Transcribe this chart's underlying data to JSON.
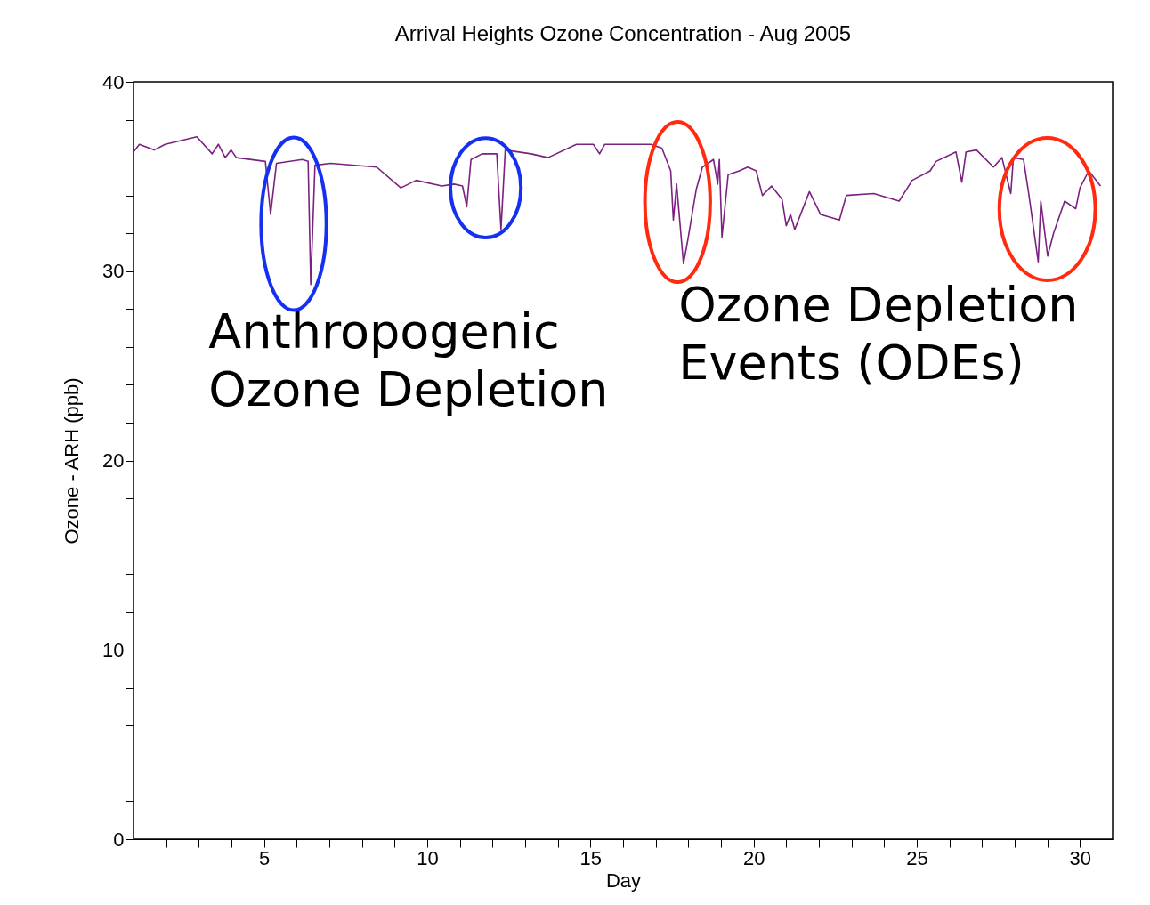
{
  "chart_data": {
    "type": "line",
    "title": "Arrival Heights Ozone Concentration - Aug 2005",
    "xlabel": "Day",
    "ylabel": "Ozone - ARH (ppb)",
    "annotations": [
      "Anthropogenic Ozone Depletion",
      "Ozone Depletion Events (ODEs)"
    ],
    "x": [
      1.0,
      1.18,
      1.63,
      1.97,
      2.94,
      3.41,
      3.6,
      3.81,
      3.99,
      4.15,
      5.04,
      5.2,
      5.3,
      5.38,
      6.17,
      6.35,
      6.43,
      6.56,
      7.04,
      8.45,
      9.19,
      9.66,
      10.45,
      10.82,
      11.08,
      11.21,
      11.34,
      11.68,
      12.13,
      12.26,
      12.39,
      13.18,
      13.7,
      14.57,
      15.09,
      15.28,
      15.44,
      16.85,
      17.19,
      17.46,
      17.54,
      17.64,
      17.85,
      17.98,
      18.24,
      18.43,
      18.77,
      18.9,
      18.95,
      19.03,
      19.22,
      19.56,
      19.82,
      20.08,
      20.27,
      20.55,
      20.87,
      21.0,
      21.13,
      21.26,
      21.71,
      22.05,
      22.63,
      22.84,
      23.68,
      24.46,
      24.86,
      25.41,
      25.59,
      26.2,
      26.38,
      26.51,
      26.83,
      27.35,
      27.61,
      27.88,
      27.96,
      28.27,
      28.43,
      28.72,
      28.8,
      29.01,
      29.19,
      29.53,
      29.87,
      30.0,
      30.27,
      30.63
    ],
    "values": [
      36.3,
      36.7,
      36.4,
      36.7,
      37.1,
      36.2,
      36.7,
      36.0,
      36.4,
      36.0,
      35.8,
      33.0,
      34.5,
      35.7,
      35.9,
      35.8,
      29.3,
      35.6,
      35.7,
      35.5,
      34.4,
      34.8,
      34.5,
      34.6,
      34.5,
      33.4,
      35.9,
      36.2,
      36.2,
      32.2,
      36.4,
      36.2,
      36.0,
      36.7,
      36.7,
      36.2,
      36.7,
      36.7,
      36.5,
      35.3,
      32.7,
      34.6,
      30.4,
      31.6,
      34.3,
      35.5,
      35.9,
      34.6,
      35.9,
      31.8,
      35.1,
      35.3,
      35.5,
      35.3,
      34.0,
      34.5,
      33.8,
      32.4,
      33.0,
      32.2,
      34.2,
      33.0,
      32.7,
      34.0,
      34.1,
      33.7,
      34.8,
      35.3,
      35.8,
      36.3,
      34.7,
      36.3,
      36.4,
      35.5,
      36.0,
      34.1,
      36.0,
      35.9,
      34.1,
      30.5,
      33.7,
      30.8,
      32.0,
      33.7,
      33.3,
      34.4,
      35.3,
      34.5
    ],
    "color": "#7b2180",
    "xlim": [
      1,
      31
    ],
    "xticks": [
      {
        "value": 2,
        "label": null
      },
      {
        "value": 3,
        "label": null
      },
      {
        "value": 4,
        "label": null
      },
      5,
      {
        "value": 6,
        "label": null
      },
      {
        "value": 7,
        "label": null
      },
      {
        "value": 8,
        "label": null
      },
      {
        "value": 9,
        "label": null
      },
      10,
      {
        "value": 11,
        "label": null
      },
      {
        "value": 12,
        "label": null
      },
      {
        "value": 13,
        "label": null
      },
      {
        "value": 14,
        "label": null
      },
      15,
      {
        "value": 16,
        "label": null
      },
      {
        "value": 17,
        "label": null
      },
      {
        "value": 18,
        "label": null
      },
      {
        "value": 19,
        "label": null
      },
      20,
      {
        "value": 21,
        "label": null
      },
      {
        "value": 22,
        "label": null
      },
      {
        "value": 23,
        "label": null
      },
      {
        "value": 24,
        "label": null
      },
      25,
      {
        "value": 26,
        "label": null
      },
      {
        "value": 27,
        "label": null
      },
      {
        "value": 28,
        "label": null
      },
      {
        "value": 29,
        "label": null
      },
      30
    ],
    "ylim": [
      0,
      40
    ],
    "yticks": [
      0,
      {
        "value": 2,
        "label": null
      },
      {
        "value": 4,
        "label": null
      },
      {
        "value": 6,
        "label": null
      },
      {
        "value": 8,
        "label": null
      },
      10,
      {
        "value": 12,
        "label": null
      },
      {
        "value": 14,
        "label": null
      },
      {
        "value": 16,
        "label": null
      },
      {
        "value": 18,
        "label": null
      },
      20,
      {
        "value": 22,
        "label": null
      },
      {
        "value": 24,
        "label": null
      },
      {
        "value": 26,
        "label": null
      },
      {
        "value": 28,
        "label": null
      },
      30,
      {
        "value": 32,
        "label": null
      },
      {
        "value": 34,
        "label": null
      },
      {
        "value": 36,
        "label": null
      },
      {
        "value": 38,
        "label": null
      },
      40
    ],
    "grid": false,
    "marker": "none",
    "line_style": "solid"
  }
}
